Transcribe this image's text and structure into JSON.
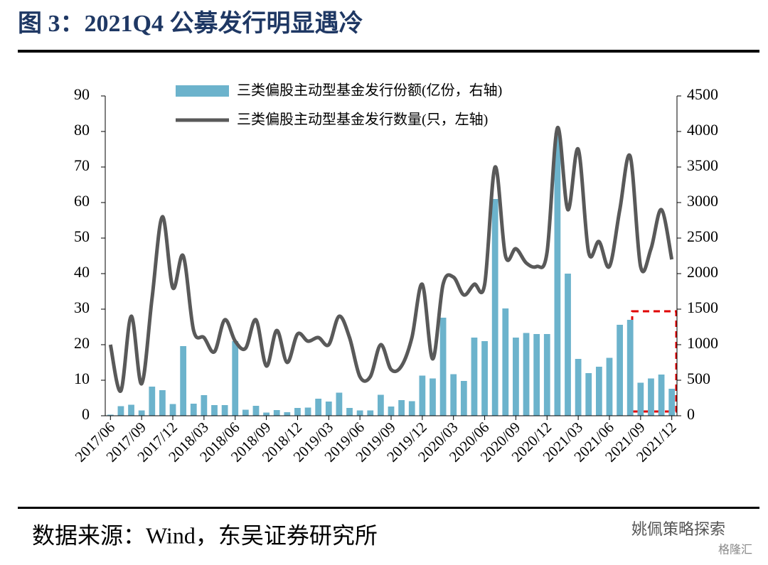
{
  "chart_data": {
    "type": "combo",
    "title": "图 3：2021Q4 公募发行明显遇冷",
    "source": "数据来源：Wind，东吴证券研究所",
    "watermark": [
      "姚佩策略探索",
      "格隆汇"
    ],
    "categories": [
      "2017/06",
      null,
      null,
      "2017/09",
      null,
      null,
      "2017/12",
      null,
      null,
      "2018/03",
      null,
      null,
      "2018/06",
      null,
      null,
      "2018/09",
      null,
      null,
      "2018/12",
      null,
      null,
      "2019/03",
      null,
      null,
      "2019/06",
      null,
      null,
      "2019/09",
      null,
      null,
      "2019/12",
      null,
      null,
      "2020/03",
      null,
      null,
      "2020/06",
      null,
      null,
      "2020/09",
      null,
      null,
      "2020/12",
      null,
      null,
      "2021/03",
      null,
      null,
      "2021/06",
      null,
      null,
      "2021/09",
      null,
      null,
      "2021/12"
    ],
    "series": [
      {
        "name": "三类偏股主动型基金发行份额(亿份，右轴)",
        "color": "#6cb3cc",
        "axis": "y2",
        "values": [
          15,
          135,
          155,
          75,
          410,
          360,
          165,
          980,
          170,
          290,
          150,
          150,
          1050,
          85,
          140,
          45,
          80,
          50,
          110,
          115,
          240,
          200,
          325,
          110,
          75,
          75,
          295,
          130,
          220,
          205,
          565,
          525,
          1380,
          585,
          490,
          1100,
          1050,
          3050,
          1510,
          1100,
          1165,
          1150,
          1150,
          3975,
          2000,
          800,
          600,
          690,
          815,
          1280,
          1350,
          465,
          525,
          580,
          380
        ]
      },
      {
        "name": "三类偏股主动型基金发行数量(只，左轴)",
        "color": "#595959",
        "axis": "y",
        "values": [
          20,
          7,
          28,
          9,
          33,
          56,
          36,
          45,
          24,
          22,
          18,
          27,
          21,
          19,
          27,
          14,
          24,
          15,
          23,
          21,
          22,
          20,
          28,
          22,
          11,
          11,
          20,
          13,
          14,
          22,
          37,
          16,
          37,
          39,
          34,
          37,
          37,
          70,
          45,
          47,
          43,
          42,
          46,
          81,
          58,
          75,
          46,
          49,
          42,
          58,
          73,
          42,
          47,
          58,
          44
        ]
      }
    ],
    "ylim": [
      0,
      90
    ],
    "yticks": [
      0,
      10,
      20,
      30,
      40,
      50,
      60,
      70,
      80,
      90
    ],
    "y2lim": [
      0,
      4500
    ],
    "y2ticks": [
      0,
      500,
      1000,
      1500,
      2000,
      2500,
      3000,
      3500,
      4000,
      4500
    ]
  }
}
